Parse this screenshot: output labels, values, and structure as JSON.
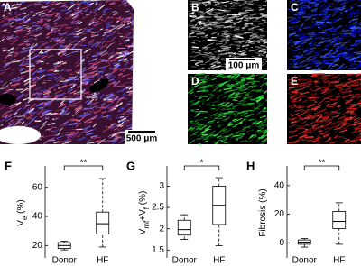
{
  "image_panels": [
    {
      "label": "A",
      "scale_bar": "500 μm"
    },
    {
      "label": "B",
      "scale_bar": "100 μm"
    },
    {
      "label": "C"
    },
    {
      "label": "D"
    },
    {
      "label": "E"
    }
  ],
  "chart_data": [
    {
      "type": "box",
      "label": "F",
      "ylabel": [
        {
          "text": "V"
        },
        {
          "text": "e",
          "sub": true
        },
        {
          "text": " (%)"
        }
      ],
      "categories": [
        "Donor",
        "HF"
      ],
      "boxes": [
        {
          "min": 17,
          "q1": 18,
          "median": 20,
          "q3": 22,
          "max": 23
        },
        {
          "min": 19,
          "q1": 28,
          "median": 35,
          "q3": 43,
          "max": 66
        }
      ],
      "significance": "**",
      "ylim": [
        14,
        71
      ],
      "yticks": [
        20,
        40,
        60
      ]
    },
    {
      "type": "box",
      "label": "G",
      "ylabel": [
        {
          "text": "V"
        },
        {
          "text": "mf",
          "sub": true
        },
        {
          "text": "+V"
        },
        {
          "text": "f",
          "sub": true
        },
        {
          "text": " (%)"
        }
      ],
      "categories": [
        "Donor",
        "HF"
      ],
      "boxes": [
        {
          "min": 1.75,
          "q1": 1.85,
          "median": 1.98,
          "q3": 2.2,
          "max": 2.33
        },
        {
          "min": 1.6,
          "q1": 2.1,
          "median": 2.55,
          "q3": 3.0,
          "max": 3.2
        }
      ],
      "significance": "*",
      "ylim": [
        1.4,
        3.35
      ],
      "yticks": [
        1.5,
        2,
        2.5,
        3
      ]
    },
    {
      "type": "box",
      "label": "H",
      "ylabel": [
        {
          "text": "Fibrosis (%)"
        }
      ],
      "categories": [
        "Donor",
        "HF"
      ],
      "boxes": [
        {
          "min": -3,
          "q1": -1,
          "median": 0.5,
          "q3": 2,
          "max": 3
        },
        {
          "min": -1,
          "q1": 10,
          "median": 15,
          "q3": 22,
          "max": 28
        }
      ],
      "significance": "**",
      "ylim": [
        -8,
        50
      ],
      "yticks": [
        0,
        20,
        40
      ]
    }
  ]
}
